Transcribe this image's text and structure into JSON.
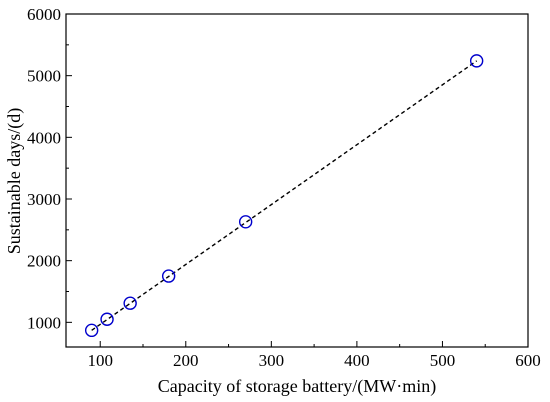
{
  "chart_data": {
    "type": "scatter",
    "xlabel": "Capacity of storage battery/(MW·min)",
    "ylabel": "Sustainable days/(d)",
    "xlim": [
      60,
      600
    ],
    "ylim": [
      600,
      6000
    ],
    "xticks": [
      100,
      200,
      300,
      400,
      500,
      600
    ],
    "yticks": [
      1000,
      2000,
      3000,
      4000,
      5000,
      6000
    ],
    "grid": false,
    "series": [
      {
        "marker": "open-circle",
        "color": "#0000cc",
        "points": [
          {
            "x": 90,
            "y": 870
          },
          {
            "x": 108,
            "y": 1050
          },
          {
            "x": 135,
            "y": 1310
          },
          {
            "x": 180,
            "y": 1750
          },
          {
            "x": 270,
            "y": 2630
          },
          {
            "x": 540,
            "y": 5240
          }
        ]
      }
    ],
    "fit_line": {
      "style": "dashed",
      "color": "#000000",
      "from": {
        "x": 90,
        "y": 870
      },
      "to": {
        "x": 540,
        "y": 5240
      }
    }
  }
}
